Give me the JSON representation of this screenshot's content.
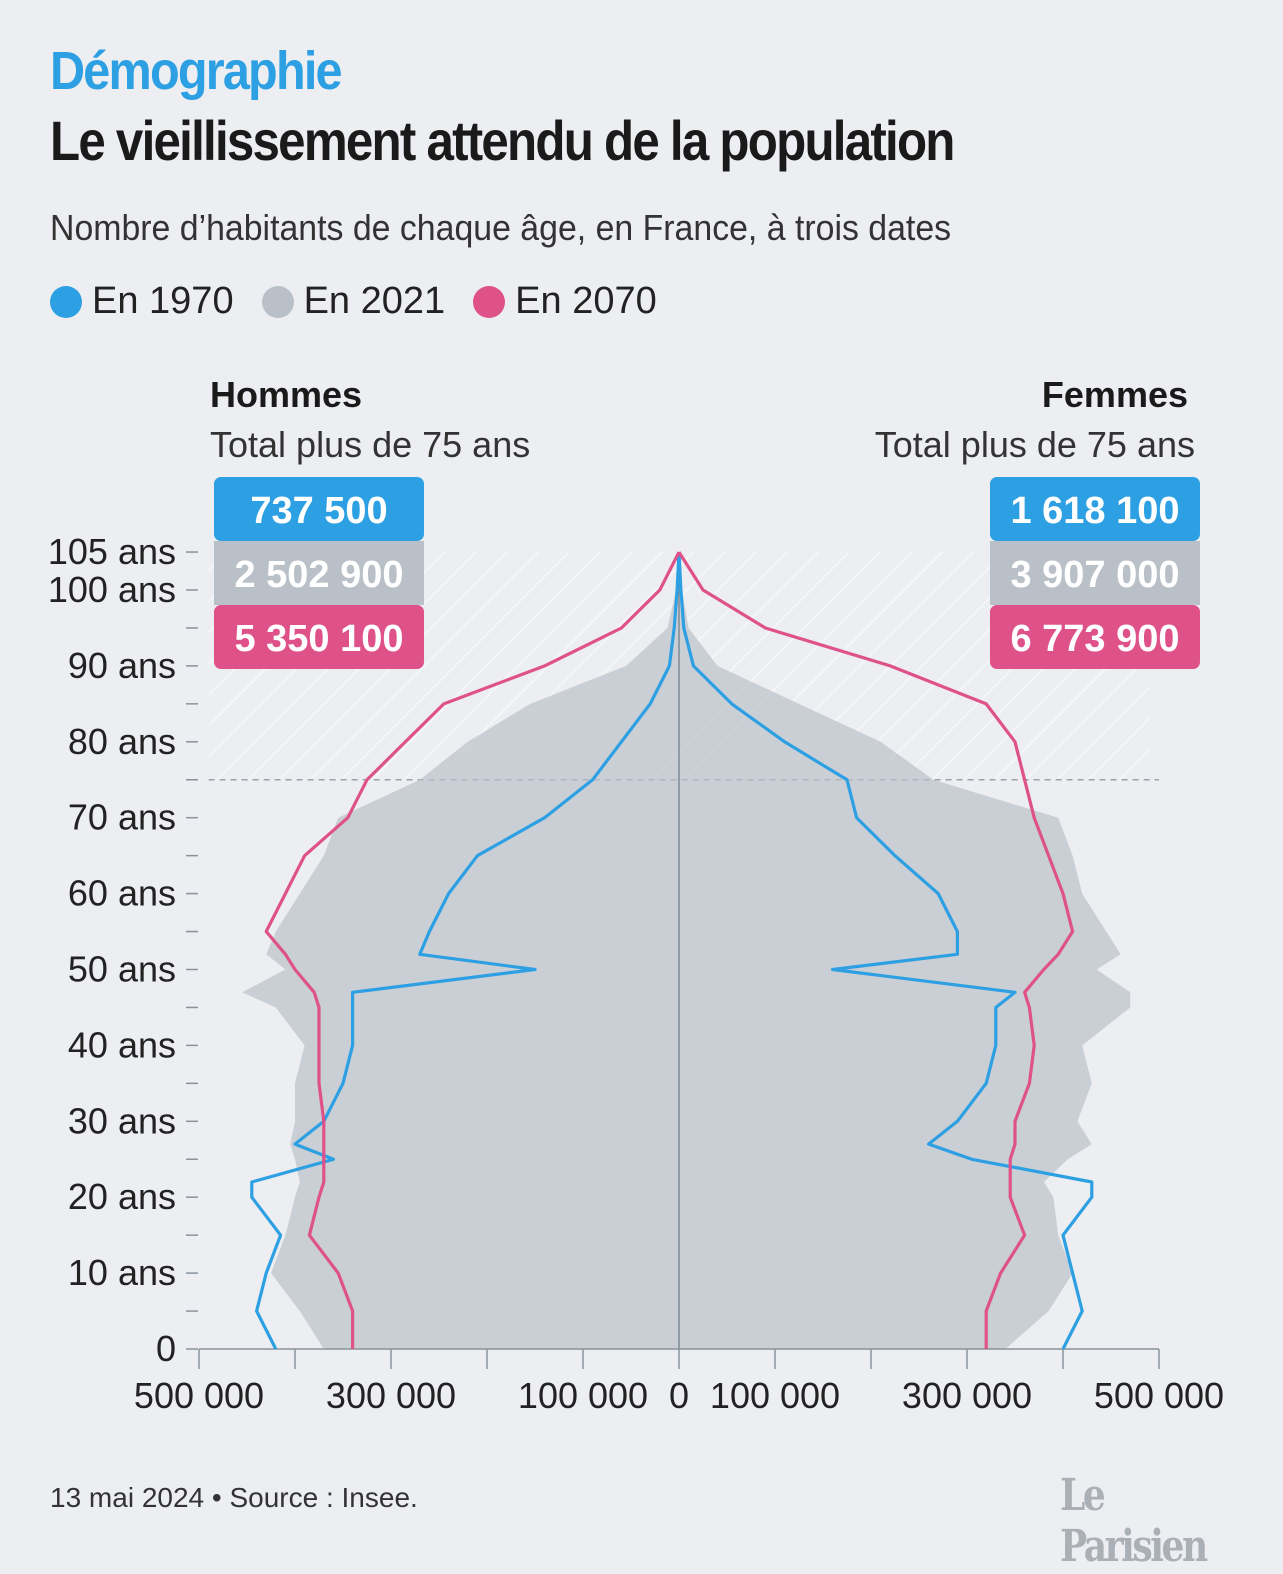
{
  "header": {
    "kicker": "Démographie",
    "title": "Le vieillissement attendu de la population",
    "subtitle": "Nombre d’habitants de chaque âge, en France, à trois dates"
  },
  "legend": [
    {
      "label": "En 1970",
      "color": "#2d9fe3"
    },
    {
      "label": "En 2021",
      "color": "#b9c0c7"
    },
    {
      "label": "En 2070",
      "color": "#de5289"
    }
  ],
  "sides": {
    "hommes": {
      "title": "Hommes",
      "subtitle": "Total plus de 75 ans",
      "totals": [
        "737 500",
        "2 502 900",
        "5 350 100"
      ]
    },
    "femmes": {
      "title": "Femmes",
      "subtitle": "Total plus de 75 ans",
      "totals": [
        "1 618 100",
        "3 907 000",
        "6 773 900"
      ]
    }
  },
  "footer": {
    "source": "13 mai 2024 • Source : Insee.",
    "logo": "Le Parisien"
  },
  "chart_data": {
    "type": "area",
    "chart_kind": "population-pyramid",
    "ylim": [
      0,
      105
    ],
    "xlim": [
      -500000,
      500000
    ],
    "threshold_age": 75,
    "y_ticks": [
      {
        "value": 0,
        "label": "0"
      },
      {
        "value": 10,
        "label": "10 ans"
      },
      {
        "value": 20,
        "label": "20 ans"
      },
      {
        "value": 30,
        "label": "30 ans"
      },
      {
        "value": 40,
        "label": "40 ans"
      },
      {
        "value": 50,
        "label": "50 ans"
      },
      {
        "value": 60,
        "label": "60 ans"
      },
      {
        "value": 70,
        "label": "70 ans"
      },
      {
        "value": 80,
        "label": "80 ans"
      },
      {
        "value": 90,
        "label": "90 ans"
      },
      {
        "value": 100,
        "label": "100 ans"
      },
      {
        "value": 105,
        "label": "105 ans"
      }
    ],
    "x_ticks": [
      {
        "value": -500000,
        "label": "500 000"
      },
      {
        "value": -300000,
        "label": "300 000"
      },
      {
        "value": -100000,
        "label": "100 000"
      },
      {
        "value": 0,
        "label": "0"
      },
      {
        "value": 100000,
        "label": "100 000"
      },
      {
        "value": 300000,
        "label": "300 000"
      },
      {
        "value": 500000,
        "label": "500 000"
      }
    ],
    "ages": [
      0,
      5,
      10,
      15,
      20,
      22,
      25,
      27,
      30,
      35,
      40,
      45,
      47,
      50,
      52,
      55,
      60,
      65,
      70,
      75,
      80,
      85,
      90,
      95,
      100,
      105
    ],
    "series": [
      {
        "name": "En 1970",
        "color": "#2d9fe3",
        "hommes": [
          420000,
          440000,
          430000,
          415000,
          445000,
          445000,
          360000,
          400000,
          370000,
          350000,
          340000,
          340000,
          340000,
          150000,
          270000,
          260000,
          240000,
          210000,
          140000,
          90000,
          60000,
          30000,
          10000,
          5000,
          2000,
          0
        ],
        "femmes": [
          400000,
          420000,
          410000,
          400000,
          430000,
          430000,
          305000,
          260000,
          290000,
          320000,
          330000,
          330000,
          350000,
          160000,
          290000,
          290000,
          270000,
          225000,
          185000,
          175000,
          110000,
          55000,
          15000,
          5000,
          2000,
          0
        ]
      },
      {
        "name": "En 2021",
        "color": "#b9c0c7",
        "hommes": [
          370000,
          395000,
          425000,
          410000,
          400000,
          395000,
          400000,
          405000,
          400000,
          400000,
          390000,
          420000,
          455000,
          410000,
          430000,
          420000,
          395000,
          370000,
          355000,
          270000,
          220000,
          155000,
          55000,
          12000,
          3000,
          0
        ],
        "femmes": [
          340000,
          385000,
          410000,
          395000,
          390000,
          380000,
          405000,
          430000,
          415000,
          430000,
          420000,
          470000,
          470000,
          435000,
          460000,
          445000,
          420000,
          410000,
          395000,
          265000,
          210000,
          125000,
          40000,
          10000,
          3000,
          0
        ]
      },
      {
        "name": "En 2070",
        "color": "#de5289",
        "hommes": [
          340000,
          340000,
          355000,
          385000,
          375000,
          370000,
          370000,
          370000,
          370000,
          375000,
          375000,
          375000,
          380000,
          400000,
          410000,
          430000,
          410000,
          390000,
          345000,
          325000,
          285000,
          245000,
          140000,
          60000,
          20000,
          0
        ],
        "femmes": [
          320000,
          320000,
          335000,
          360000,
          345000,
          345000,
          345000,
          350000,
          350000,
          365000,
          370000,
          365000,
          360000,
          380000,
          395000,
          410000,
          400000,
          385000,
          370000,
          360000,
          350000,
          320000,
          220000,
          90000,
          25000,
          0
        ]
      }
    ]
  }
}
